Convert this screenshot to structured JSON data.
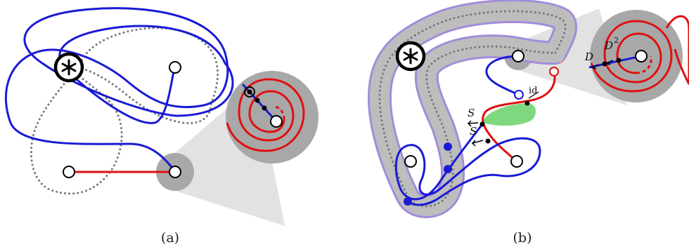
{
  "panels": [
    {
      "caption": "(a)"
    },
    {
      "caption": "(b)"
    }
  ],
  "labels": {
    "s_upper": "S",
    "s_lower": "S",
    "id": "id",
    "d": "D",
    "d2": "D",
    "d2_exp": "2"
  },
  "colors": {
    "blue": "#1a1ad6",
    "red": "#e01010",
    "gray_dots": "#777777",
    "zoom_fill": "#a8a8a8",
    "zoom_cone": "#e2e2e2",
    "tube_gray": "#bdbdbd",
    "tube_pink": "#f08c8c",
    "tube_lavender": "#8c8cf0",
    "green_region": "#7fd87f"
  },
  "icons": [
    "asterisk-puncture-icon",
    "asterisk-puncture-icon"
  ]
}
